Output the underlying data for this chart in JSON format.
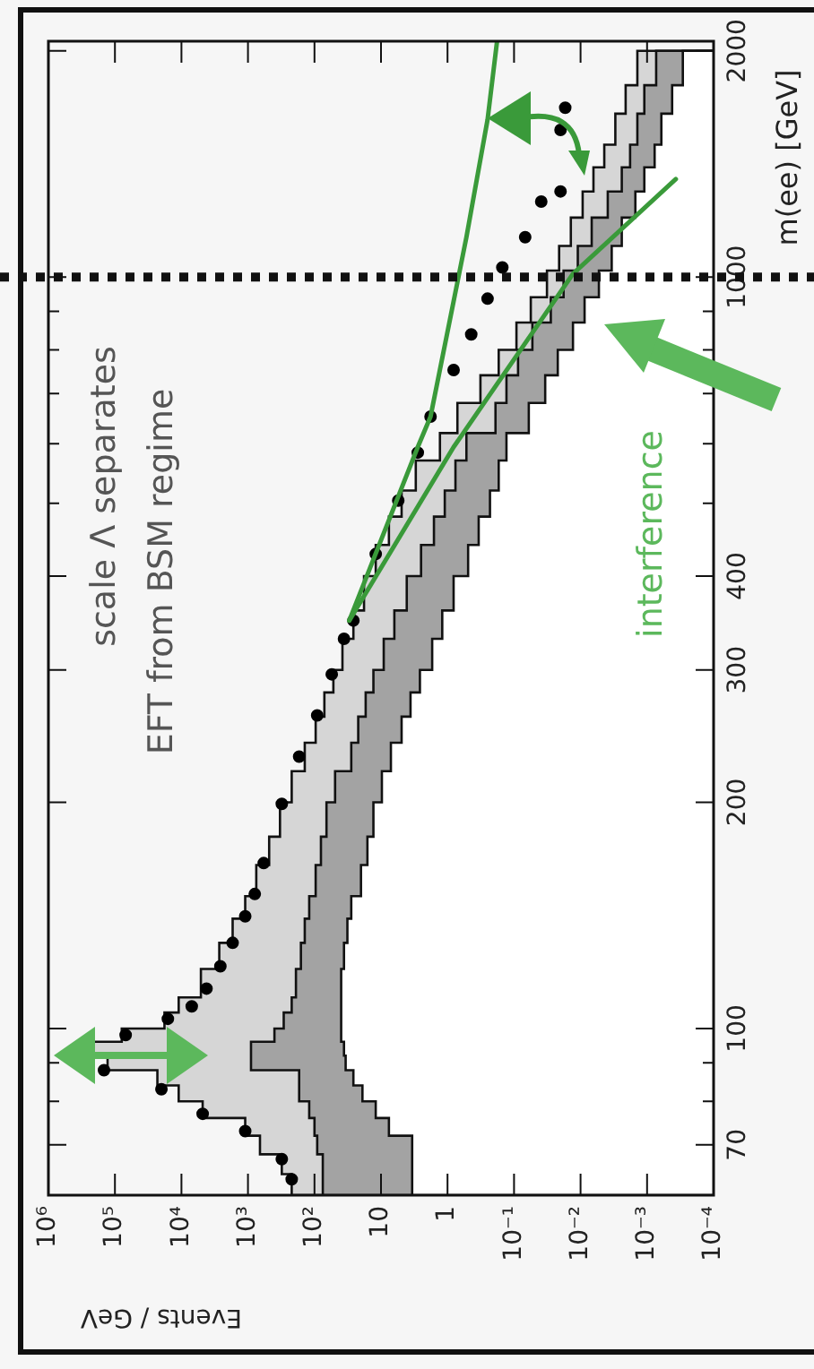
{
  "chart_data": {
    "type": "histogram",
    "orientation": "horizontal",
    "ylabel": "m(ee) [GeV]",
    "xlabel": "Events / GeV",
    "log": "xy",
    "annotations": [
      "scale Λ separates",
      "EFT from BSM regime",
      "interference"
    ],
    "ylim": [
      60,
      2060
    ],
    "yticks": [
      70,
      {
        "value": 80,
        "label": null
      },
      {
        "value": 90,
        "label": null
      },
      100,
      200,
      300,
      400,
      {
        "value": 500,
        "label": null
      },
      {
        "value": 600,
        "label": null
      },
      {
        "value": 700,
        "label": null
      },
      {
        "value": 800,
        "label": null
      },
      {
        "value": 900,
        "label": null
      },
      1000,
      2000
    ],
    "xlim": [
      1000000,
      0.0001
    ],
    "xticks": [
      {
        "value": 1000000,
        "label": "10⁶"
      },
      {
        "value": 100000,
        "label": "10⁵"
      },
      {
        "value": 10000,
        "label": "10⁴"
      },
      {
        "value": 1000,
        "label": "10³"
      },
      {
        "value": 100,
        "label": "10²"
      },
      10,
      1,
      {
        "value": 0.1,
        "label": "10⁻¹"
      },
      {
        "value": 0.01,
        "label": "10⁻²"
      },
      {
        "value": 0.001,
        "label": "10⁻³"
      },
      {
        "value": 0.0001,
        "label": "10⁻⁴"
      }
    ],
    "bins": [
      60,
      64,
      68,
      72,
      76,
      80,
      84,
      88,
      92,
      96,
      100,
      105,
      110,
      120,
      130,
      140,
      150,
      165,
      180,
      200,
      220,
      240,
      260,
      280,
      300,
      330,
      360,
      400,
      440,
      480,
      520,
      570,
      620,
      680,
      740,
      800,
      870,
      940,
      1020,
      1100,
      1200,
      1300,
      1400,
      1500,
      1650,
      1800,
      2000
    ],
    "series": [
      {
        "color": "#d6d6d6",
        "values": [
          220,
          310,
          660,
          1100,
          4800,
          11000,
          23000,
          129000,
          212000,
          79000,
          18000,
          11000,
          5100,
          2700,
          1700,
          1100,
          750,
          480,
          330,
          220,
          140,
          96,
          71,
          52,
          38,
          26,
          18,
          12,
          7.6,
          4.9,
          3.0,
          1.3,
          0.71,
          0.32,
          0.17,
          0.092,
          0.056,
          0.032,
          0.021,
          0.014,
          0.0093,
          0.0064,
          0.0044,
          0.003,
          0.0021,
          0.0014
        ]
      },
      {
        "color": "#a3a3a3",
        "values": [
          75,
          75,
          91,
          100,
          120,
          170,
          170,
          900,
          900,
          400,
          290,
          220,
          190,
          160,
          140,
          120,
          96,
          80,
          66,
          49,
          28,
          22,
          17,
          13,
          9.1,
          6.3,
          4.1,
          2.5,
          1.6,
          1.1,
          0.76,
          0.52,
          0.19,
          0.13,
          0.087,
          0.053,
          0.028,
          0.018,
          0.011,
          0.0068,
          0.0039,
          0.0024,
          0.0018,
          0.0014,
          0.0011,
          0.00073
        ]
      },
      {
        "color": "#ffffff",
        "values": [
          3.4,
          3.4,
          3.4,
          7.6,
          12,
          19,
          26,
          34,
          36,
          38,
          40,
          40,
          40,
          36,
          32,
          28,
          20,
          16,
          13,
          9.7,
          7.1,
          4.9,
          3.6,
          2.6,
          1.7,
          1.2,
          0.81,
          0.49,
          0.34,
          0.23,
          0.17,
          0.13,
          0.06,
          0.034,
          0.022,
          0.013,
          0.0087,
          0.0053,
          0.0034,
          0.0024,
          0.0015,
          0.0011,
          0.00077,
          0.00061,
          0.00042,
          0.00029
        ]
      },
      {
        "type": "scatter",
        "marker": "circle",
        "color": "#000000",
        "x": [
          63,
          67,
          73,
          77,
          83,
          88,
          92,
          98,
          103,
          107,
          113,
          121,
          130,
          141,
          151,
          166,
          199,
          230,
          261,
          296,
          330,
          349,
          428,
          504,
          584,
          652,
          752,
          839,
          936,
          1030,
          1130,
          1260,
          1300,
          1570,
          1680
        ],
        "values": [
          220,
          310,
          1100,
          4800,
          20000,
          146000,
          null,
          69000,
          16000,
          7000,
          4200,
          2600,
          1700,
          1100,
          790,
          580,
          310,
          170,
          91,
          55,
          36,
          26,
          12,
          5.5,
          2.8,
          1.8,
          0.81,
          0.44,
          0.25,
          0.15,
          0.068,
          0.039,
          0.02,
          0.02,
          0.017
        ]
      },
      {
        "type": "line",
        "color": "#3a9a3a",
        "x": [
          349,
          594,
          652,
          1130,
          1620,
          2060
        ],
        "values": [
          30,
          2.8,
          1.8,
          0.52,
          0.25,
          0.18
        ]
      },
      {
        "type": "line",
        "color": "#3a9a3a",
        "x": [
          349,
          594,
          1010,
          1350
        ],
        "values": [
          30,
          0.81,
          0.013,
          0.00037
        ]
      }
    ],
    "ref_lines": [
      {
        "axis": "y",
        "value": 1000,
        "color": "#111111",
        "line_style": "dotted"
      }
    ]
  }
}
